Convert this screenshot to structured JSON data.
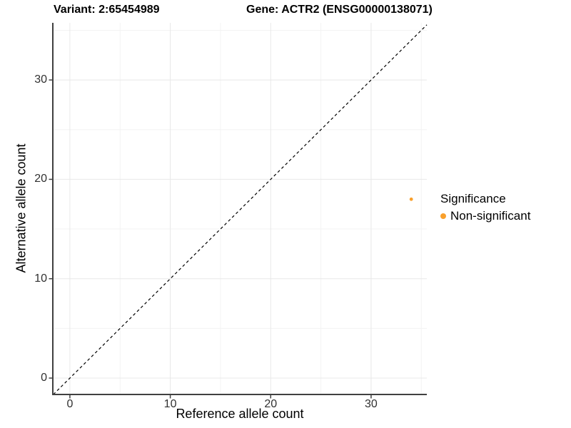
{
  "chart_data": {
    "type": "scatter",
    "titles": {
      "left": "Variant: 2:65454989",
      "right": "Gene: ACTR2 (ENSG00000138071)"
    },
    "xlabel": "Reference allele count",
    "ylabel": "Alternative allele count",
    "xlim": [
      -1.7,
      35.55
    ],
    "ylim": [
      -1.65,
      35.75
    ],
    "x_ticks": [
      0,
      10,
      20,
      30
    ],
    "y_ticks": [
      0,
      10,
      20,
      30
    ],
    "x_minor_ticks": [
      5,
      15,
      25,
      35
    ],
    "y_minor_ticks": [
      5,
      15,
      25,
      35
    ],
    "grid": "major and minor gridlines, light gray, white background",
    "identity_line": {
      "equation": "y = x",
      "style": "dashed",
      "color": "#000000"
    },
    "series": [
      {
        "name": "Non-significant",
        "color": "#F9A02C",
        "points": [
          {
            "x": 34,
            "y": 18
          }
        ]
      }
    ],
    "legend": {
      "title": "Significance",
      "position": "right",
      "entries": [
        {
          "label": "Non-significant",
          "color": "#F9A02C"
        }
      ]
    }
  },
  "colors": {
    "background": "#FFFFFF",
    "axis_line": "#404040",
    "grid_major": "#E8E8E8",
    "grid_minor": "#F3F3F3",
    "tick_text": "#303030",
    "point": "#F9A02C"
  }
}
